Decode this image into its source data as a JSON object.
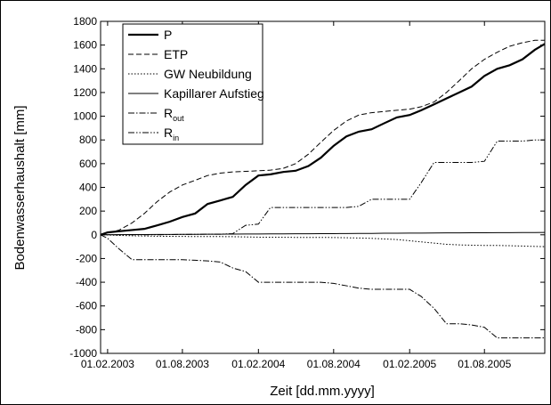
{
  "chart_data": {
    "type": "line",
    "x_label": "Zeit [dd.mm.yyyy]",
    "y_label": "Bodenwasserhaushalt [mm]",
    "x": [
      "15.01.2003",
      "01.02.2003",
      "01.03.2003",
      "01.04.2003",
      "01.05.2003",
      "01.06.2003",
      "01.07.2003",
      "01.08.2003",
      "01.09.2003",
      "01.10.2003",
      "01.11.2003",
      "01.12.2003",
      "01.01.2004",
      "01.02.2004",
      "01.03.2004",
      "01.04.2004",
      "01.05.2004",
      "01.06.2004",
      "01.07.2004",
      "01.08.2004",
      "01.09.2004",
      "01.10.2004",
      "01.11.2004",
      "01.12.2004",
      "01.01.2005",
      "01.02.2005",
      "01.03.2005",
      "01.04.2005",
      "01.05.2005",
      "01.06.2005",
      "01.07.2005",
      "01.08.2005",
      "01.09.2005",
      "01.10.2005",
      "01.11.2005",
      "01.12.2005",
      "25.12.2005"
    ],
    "xlim": [
      "15.01.2003",
      "25.12.2005"
    ],
    "xticks": [
      "01.02.2003",
      "01.08.2003",
      "01.02.2004",
      "01.08.2004",
      "01.02.2005",
      "01.08.2005"
    ],
    "ylim": [
      -1000,
      1800
    ],
    "yticks": [
      -1000,
      -800,
      -600,
      -400,
      -200,
      0,
      200,
      400,
      600,
      800,
      1000,
      1200,
      1400,
      1600,
      1800
    ],
    "legend": "upper-left",
    "series": [
      {
        "name": "P",
        "color": "#000000",
        "width": 2.2,
        "dash": "none",
        "values": [
          0,
          20,
          30,
          40,
          50,
          80,
          110,
          150,
          180,
          260,
          290,
          320,
          420,
          500,
          510,
          530,
          540,
          580,
          650,
          750,
          830,
          870,
          890,
          940,
          990,
          1010,
          1050,
          1100,
          1150,
          1200,
          1250,
          1340,
          1400,
          1430,
          1480,
          1560,
          1610
        ]
      },
      {
        "name": "ETP",
        "color": "#000000",
        "width": 1,
        "dash": "6,3",
        "values": [
          0,
          15,
          40,
          100,
          180,
          280,
          360,
          420,
          460,
          500,
          520,
          530,
          535,
          540,
          545,
          560,
          600,
          680,
          780,
          880,
          960,
          1010,
          1030,
          1040,
          1050,
          1060,
          1080,
          1120,
          1200,
          1300,
          1400,
          1480,
          1540,
          1590,
          1620,
          1640,
          1640
        ]
      },
      {
        "name": "GW Neubildung",
        "color": "#000000",
        "width": 1,
        "dash": "1.5,2",
        "values": [
          0,
          -2,
          -5,
          -8,
          -10,
          -12,
          -13,
          -14,
          -15,
          -15,
          -15,
          -16,
          -18,
          -20,
          -20,
          -21,
          -22,
          -22,
          -22,
          -23,
          -25,
          -27,
          -30,
          -35,
          -40,
          -50,
          -60,
          -70,
          -80,
          -85,
          -88,
          -90,
          -90,
          -92,
          -95,
          -98,
          -100
        ]
      },
      {
        "name": "Kapillarer Aufstieg",
        "color": "#000000",
        "width": 1,
        "dash": "none",
        "values": [
          0,
          1,
          1,
          2,
          2,
          3,
          3,
          4,
          4,
          5,
          5,
          6,
          7,
          7,
          8,
          8,
          9,
          9,
          10,
          10,
          11,
          12,
          12,
          13,
          13,
          14,
          14,
          15,
          16,
          16,
          17,
          17,
          18,
          18,
          19,
          19,
          20
        ]
      },
      {
        "name": "R",
        "subscript": "out",
        "color": "#000000",
        "width": 1,
        "dash": "7,2,1.5,2",
        "values": [
          0,
          -30,
          -120,
          -210,
          -210,
          -210,
          -210,
          -210,
          -215,
          -220,
          -230,
          -280,
          -310,
          -400,
          -400,
          -400,
          -400,
          -400,
          -400,
          -410,
          -430,
          -450,
          -460,
          -460,
          -460,
          -460,
          -520,
          -620,
          -750,
          -750,
          -760,
          -780,
          -870,
          -870,
          -870,
          -870,
          -870
        ]
      },
      {
        "name": "R",
        "subscript": "in",
        "color": "#000000",
        "width": 1,
        "dash": "7,2,1.5,2,1.5,2",
        "values": [
          0,
          0,
          0,
          0,
          0,
          0,
          2,
          3,
          4,
          5,
          5,
          10,
          80,
          90,
          230,
          230,
          230,
          230,
          230,
          230,
          230,
          240,
          300,
          300,
          300,
          300,
          440,
          610,
          610,
          610,
          610,
          620,
          790,
          790,
          790,
          800,
          800
        ]
      }
    ]
  }
}
